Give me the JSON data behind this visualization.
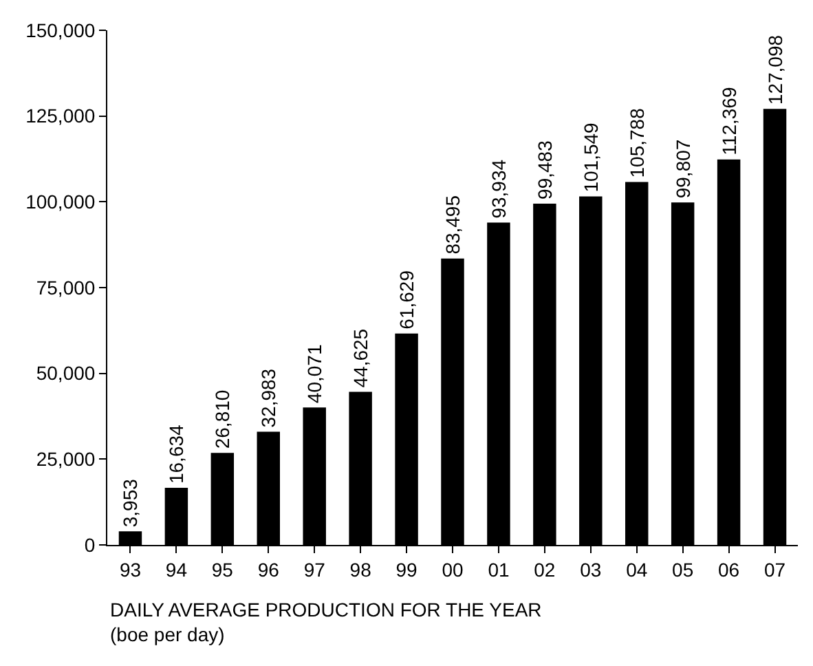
{
  "chart_data": {
    "type": "bar",
    "xlabel": "DAILY AVERAGE PRODUCTION FOR THE YEAR\n(boe per day)",
    "categories": [
      "93",
      "94",
      "95",
      "96",
      "97",
      "98",
      "99",
      "00",
      "01",
      "02",
      "03",
      "04",
      "05",
      "06",
      "07"
    ],
    "values": [
      3953,
      16634,
      26810,
      32983,
      40071,
      44625,
      61629,
      83495,
      93934,
      99483,
      101549,
      105788,
      99807,
      112369,
      127098
    ],
    "value_labels": [
      "3,953",
      "16,634",
      "26,810",
      "32,983",
      "40,071",
      "44,625",
      "61,629",
      "83,495",
      "93,934",
      "99,483",
      "101,549",
      "105,788",
      "99,807",
      "112,369",
      "127,098"
    ],
    "color": "#000000",
    "ylim": [
      0,
      150000
    ],
    "yticks": [
      {
        "value": 0,
        "label": "0"
      },
      {
        "value": 25000,
        "label": "25,000"
      },
      {
        "value": 50000,
        "label": "50,000"
      },
      {
        "value": 75000,
        "label": "75,000"
      },
      {
        "value": 100000,
        "label": "100,000"
      },
      {
        "value": 125000,
        "label": "125,000"
      },
      {
        "value": 150000,
        "label": "150,000"
      }
    ],
    "grid": false,
    "legend": false
  }
}
